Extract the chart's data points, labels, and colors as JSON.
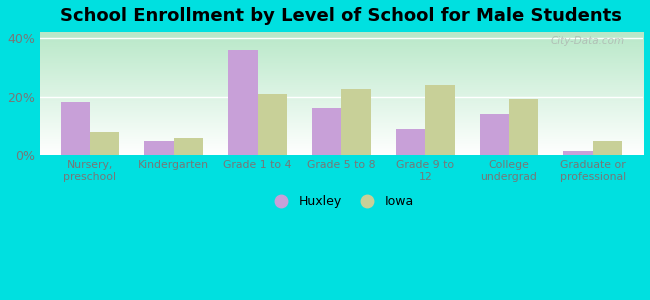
{
  "title": "School Enrollment by Level of School for Male Students",
  "categories": [
    "Nursery,\npreschool",
    "Kindergarten",
    "Grade 1 to 4",
    "Grade 5 to 8",
    "Grade 9 to\n12",
    "College\nundergrad",
    "Graduate or\nprofessional"
  ],
  "huxley": [
    18.0,
    5.0,
    36.0,
    16.0,
    9.0,
    14.0,
    1.5
  ],
  "iowa": [
    8.0,
    6.0,
    21.0,
    22.5,
    24.0,
    19.0,
    5.0
  ],
  "huxley_color": "#c8a0d8",
  "iowa_color": "#c8d098",
  "background_outer": "#00e0e0",
  "background_inner_top": "#b8e8c8",
  "background_inner_bottom": "#ffffff",
  "ylim": [
    0,
    42
  ],
  "yticks": [
    0,
    20,
    40
  ],
  "ytick_labels": [
    "0%",
    "20%",
    "40%"
  ],
  "watermark": "City-Data.com",
  "legend_labels": [
    "Huxley",
    "Iowa"
  ],
  "title_fontsize": 13,
  "bar_width": 0.35,
  "tick_color": "#777777",
  "grid_color": "#ccddcc"
}
